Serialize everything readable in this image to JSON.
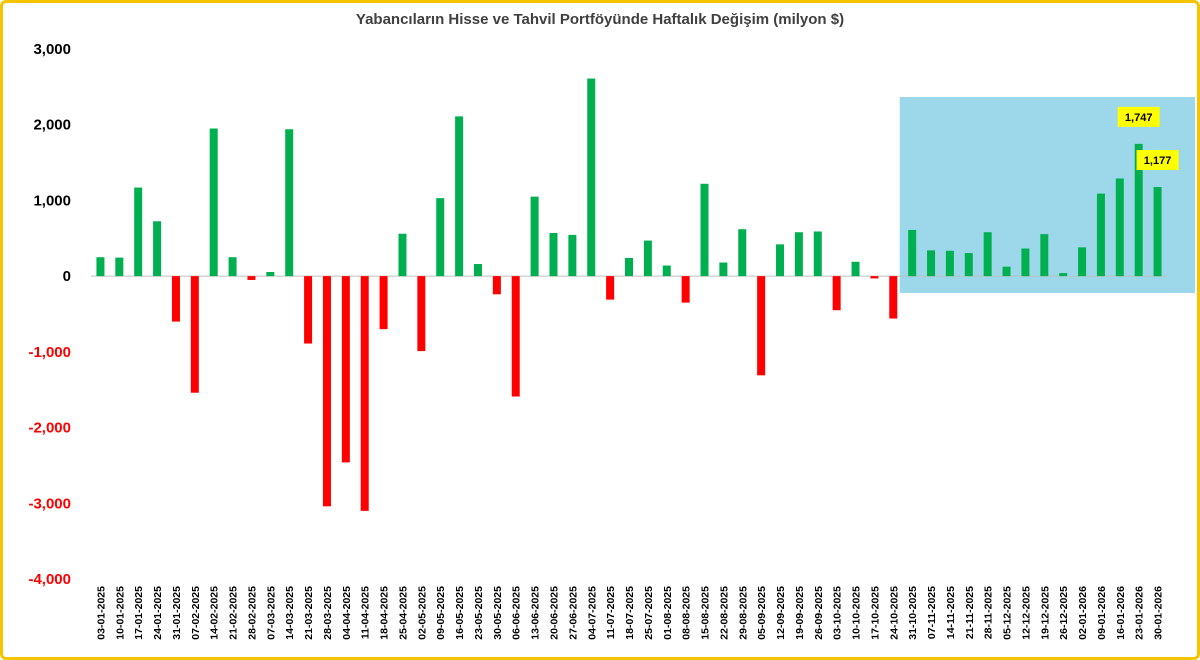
{
  "chart_data": {
    "type": "bar",
    "title": "Yabancıların Hisse ve Tahvil Portföyünde Haftalık Değişim (milyon $)",
    "xlabel": "",
    "ylabel": "",
    "ylim": [
      -4000,
      3000
    ],
    "yticks": [
      3000,
      2000,
      1000,
      0,
      -1000,
      -2000,
      -3000,
      -4000
    ],
    "ytick_labels": [
      "3,000",
      "2,000",
      "1,000",
      "0",
      "-1,000",
      "-2,000",
      "-3,000",
      "-4,000"
    ],
    "colors": {
      "positive": "#00B050",
      "negative": "#FF0000",
      "highlight_bg": "#9DD8EA",
      "callout_bg": "#FFFF00",
      "frame": "#F5C400",
      "axis": "#BFBFBF"
    },
    "categories": [
      "03-01-2025",
      "10-01-2025",
      "17-01-2025",
      "24-01-2025",
      "31-01-2025",
      "07-02-2025",
      "14-02-2025",
      "21-02-2025",
      "28-02-2025",
      "07-03-2025",
      "14-03-2025",
      "21-03-2025",
      "28-03-2025",
      "04-04-2025",
      "11-04-2025",
      "18-04-2025",
      "25-04-2025",
      "02-05-2025",
      "09-05-2025",
      "16-05-2025",
      "23-05-2025",
      "30-05-2025",
      "06-06-2025",
      "13-06-2025",
      "20-06-2025",
      "27-06-2025",
      "04-07-2025",
      "11-07-2025",
      "18-07-2025",
      "25-07-2025",
      "01-08-2025",
      "08-08-2025",
      "15-08-2025",
      "22-08-2025",
      "29-08-2025",
      "05-09-2025",
      "12-09-2025",
      "19-09-2025",
      "26-09-2025",
      "03-10-2025",
      "10-10-2025",
      "17-10-2025",
      "24-10-2025",
      "31-10-2025",
      "07-11-2025",
      "14-11-2025",
      "21-11-2025",
      "28-11-2025",
      "05-12-2025",
      "12-12-2025",
      "19-12-2025",
      "26-12-2025",
      "02-01-2026",
      "09-01-2026",
      "16-01-2026",
      "23-01-2026",
      "30-01-2026"
    ],
    "values": [
      250,
      245,
      1170,
      725,
      -600,
      -1540,
      1950,
      250,
      -50,
      55,
      1940,
      -890,
      -3040,
      -2460,
      -3100,
      -700,
      560,
      -990,
      1030,
      2110,
      160,
      -240,
      -1590,
      1050,
      570,
      545,
      2610,
      -310,
      240,
      470,
      140,
      -350,
      1220,
      180,
      620,
      -1310,
      420,
      580,
      590,
      -450,
      190,
      -30,
      -560,
      610,
      340,
      335,
      305,
      580,
      125,
      365,
      555,
      40,
      380,
      1090,
      1290,
      1747,
      1177
    ],
    "highlight_range": [
      "31-10-2025",
      "30-01-2026"
    ],
    "annotations": [
      {
        "category": "23-01-2026",
        "label": "1,747"
      },
      {
        "category": "30-01-2026",
        "label": "1,177"
      }
    ]
  }
}
